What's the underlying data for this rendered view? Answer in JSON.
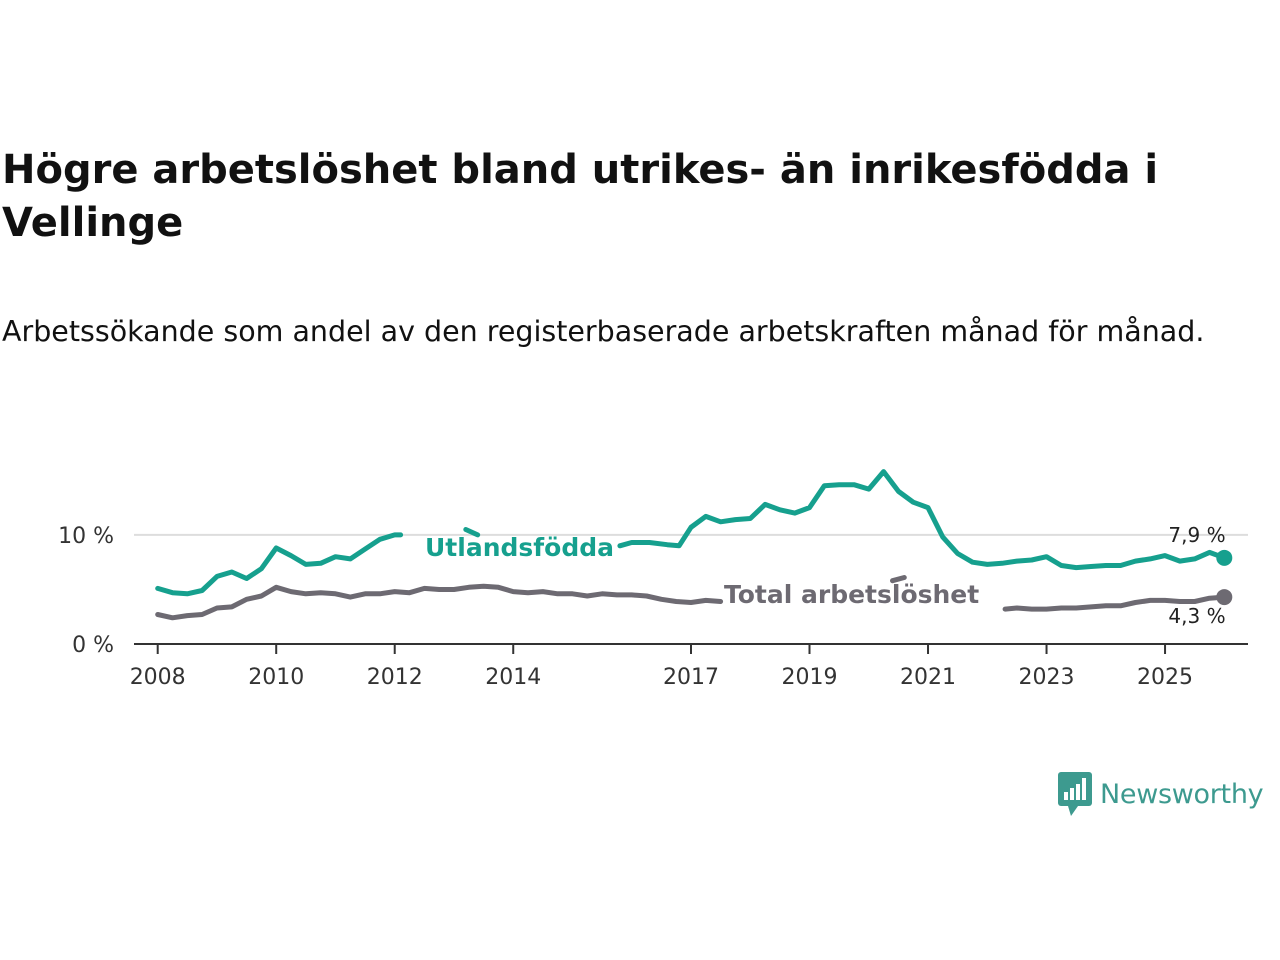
{
  "title": "Högre arbetslöshet bland utrikes- än inrikesfödda i Vellinge",
  "subtitle": "Arbetssökande som andel av den registerbaserade arbetskraften månad för månad.",
  "brand": {
    "name": "Newsworthy",
    "icon": "newsworthy-logo-icon",
    "color": "#3d9a8f"
  },
  "colors": {
    "foreign": "#16a08e",
    "total": "#6d6a72",
    "axis": "#333333",
    "grid": "#dddddd"
  },
  "chart_data": {
    "type": "line",
    "title": "Högre arbetslöshet bland utrikes- än inrikesfödda i Vellinge",
    "xlabel": "",
    "ylabel": "",
    "xlim": [
      2007.6,
      2026.4
    ],
    "ylim": [
      0,
      16.5
    ],
    "x_ticks": [
      2008,
      2010,
      2012,
      2014,
      2017,
      2019,
      2021,
      2023,
      2025
    ],
    "x_tick_labels": [
      "2008",
      "2010",
      "2012",
      "2014",
      "2017",
      "2019",
      "2021",
      "2023",
      "2025"
    ],
    "y_ticks": [
      0,
      10
    ],
    "y_tick_labels": [
      "0 %",
      "10 %"
    ],
    "grid": "horizontal",
    "series": [
      {
        "name": "Utlandsfödda",
        "color": "#16a08e",
        "end_label": "7,9 %",
        "x": [
          2008.0,
          2008.25,
          2008.5,
          2008.75,
          2009.0,
          2009.25,
          2009.5,
          2009.75,
          2010.0,
          2010.25,
          2010.5,
          2010.75,
          2011.0,
          2011.25,
          2011.5,
          2011.75,
          2012.0,
          2012.1,
          null,
          2013.2,
          2013.4,
          null,
          2015.8,
          2016.0,
          2016.3,
          2016.6,
          2016.8,
          2017.0,
          2017.25,
          2017.5,
          2017.75,
          2018.0,
          2018.25,
          2018.5,
          2018.75,
          2019.0,
          2019.25,
          2019.5,
          2019.75,
          2020.0,
          2020.25,
          2020.5,
          2020.75,
          2021.0,
          2021.25,
          2021.5,
          2021.75,
          2022.0,
          2022.25,
          2022.5,
          2022.75,
          2023.0,
          2023.25,
          2023.5,
          2023.75,
          2024.0,
          2024.25,
          2024.5,
          2024.75,
          2025.0,
          2025.25,
          2025.5,
          2025.75,
          2026.0
        ],
        "y": [
          5.1,
          4.7,
          4.6,
          4.9,
          6.2,
          6.6,
          6.0,
          6.9,
          8.8,
          8.1,
          7.3,
          7.4,
          8.0,
          7.8,
          8.7,
          9.6,
          10.0,
          10.0,
          null,
          10.5,
          10.0,
          null,
          9.0,
          9.3,
          9.3,
          9.1,
          9.0,
          10.7,
          11.7,
          11.2,
          11.4,
          11.5,
          12.8,
          12.3,
          12.0,
          12.5,
          14.5,
          14.6,
          14.6,
          14.2,
          15.8,
          14.0,
          13.0,
          12.5,
          9.8,
          8.3,
          7.5,
          7.3,
          7.4,
          7.6,
          7.7,
          8.0,
          7.2,
          7.0,
          7.1,
          7.2,
          7.2,
          7.6,
          7.8,
          8.1,
          7.6,
          7.8,
          8.4,
          7.9
        ]
      },
      {
        "name": "Total arbetslöshet",
        "color": "#6d6a72",
        "end_label": "4,3 %",
        "x": [
          2008.0,
          2008.25,
          2008.5,
          2008.75,
          2009.0,
          2009.25,
          2009.5,
          2009.75,
          2010.0,
          2010.25,
          2010.5,
          2010.75,
          2011.0,
          2011.25,
          2011.5,
          2011.75,
          2012.0,
          2012.25,
          2012.5,
          2012.75,
          2013.0,
          2013.25,
          2013.5,
          2013.75,
          2014.0,
          2014.25,
          2014.5,
          2014.75,
          2015.0,
          2015.25,
          2015.5,
          2015.75,
          2016.0,
          2016.25,
          2016.5,
          2016.75,
          2017.0,
          2017.25,
          2017.5,
          null,
          2020.4,
          2020.6,
          null,
          2022.3,
          2022.5,
          2022.75,
          2023.0,
          2023.25,
          2023.5,
          2023.75,
          2024.0,
          2024.25,
          2024.5,
          2024.75,
          2025.0,
          2025.25,
          2025.5,
          2025.75,
          2026.0
        ],
        "y": [
          2.7,
          2.4,
          2.6,
          2.7,
          3.3,
          3.4,
          4.1,
          4.4,
          5.2,
          4.8,
          4.6,
          4.7,
          4.6,
          4.3,
          4.6,
          4.6,
          4.8,
          4.7,
          5.1,
          5.0,
          5.0,
          5.2,
          5.3,
          5.2,
          4.8,
          4.7,
          4.8,
          4.6,
          4.6,
          4.4,
          4.6,
          4.5,
          4.5,
          4.4,
          4.1,
          3.9,
          3.8,
          4.0,
          3.9,
          null,
          5.8,
          6.1,
          null,
          3.2,
          3.3,
          3.2,
          3.2,
          3.3,
          3.3,
          3.4,
          3.5,
          3.5,
          3.8,
          4.0,
          4.0,
          3.9,
          3.9,
          4.2,
          4.3
        ]
      }
    ]
  }
}
